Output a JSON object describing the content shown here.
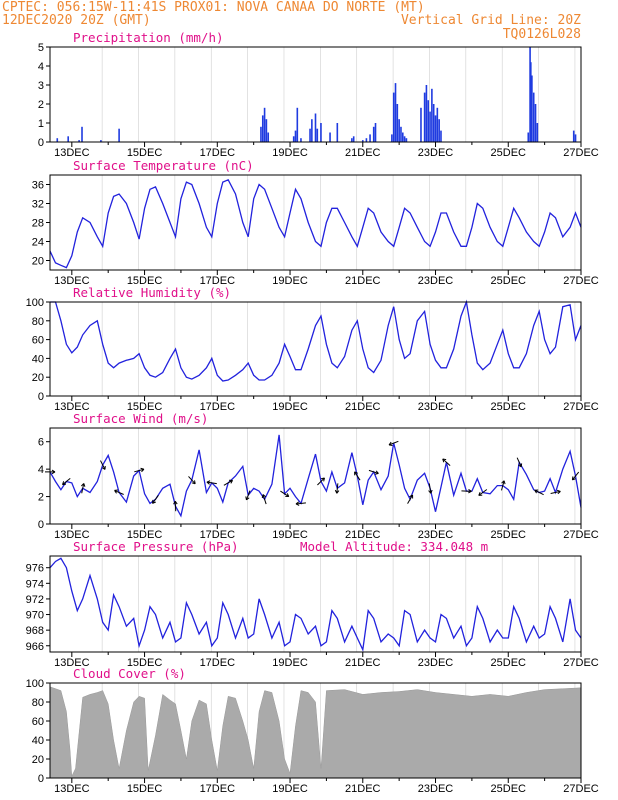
{
  "header": {
    "line1": "CPTEC:  056:15W-11:41S  PROX01: NOVA CANAA DO NORTE (MT)",
    "line2_left": "12DEC2020 20Z (GMT)",
    "line2_right": "Vertical Grid Line: 20Z",
    "line3_right": "TQ0126L028"
  },
  "colors": {
    "header": "#ee8833",
    "titles": "#e0108a",
    "line": "#2222dd",
    "bars": "#1f3be0",
    "cloud": "#aaaaaa"
  },
  "chart_data": [
    {
      "id": "precip",
      "type": "bar",
      "title": "Precipitation (mm/h)",
      "ylim": [
        0,
        5
      ],
      "yticks": [
        0,
        1,
        2,
        3,
        4,
        5
      ],
      "xlim_days": [
        12.4,
        27.0
      ],
      "xticks": [
        "13DEC",
        "15DEC",
        "17DEC",
        "19DEC",
        "21DEC",
        "23DEC",
        "25DEC",
        "27DEC"
      ],
      "x": [
        12.6,
        12.9,
        13.2,
        13.28,
        13.8,
        14.3,
        18.2,
        18.25,
        18.3,
        18.35,
        18.4,
        19.1,
        19.15,
        19.2,
        19.3,
        19.55,
        19.6,
        19.7,
        19.75,
        19.85,
        20.1,
        20.3,
        20.7,
        20.75,
        21.0,
        21.1,
        21.2,
        21.3,
        21.35,
        21.8,
        21.85,
        21.9,
        21.95,
        22.0,
        22.05,
        22.1,
        22.15,
        22.2,
        22.6,
        22.7,
        22.75,
        22.8,
        22.85,
        22.9,
        22.95,
        23.0,
        23.05,
        23.1,
        23.15,
        25.55,
        25.6,
        25.62,
        25.65,
        25.7,
        25.75,
        25.8,
        26.8,
        26.85
      ],
      "values": [
        0.2,
        0.3,
        0.1,
        0.8,
        0.1,
        0.7,
        0.8,
        1.4,
        1.8,
        1.2,
        0.5,
        0.3,
        0.6,
        1.8,
        0.2,
        0.7,
        1.2,
        1.5,
        0.7,
        1.0,
        0.5,
        1.0,
        0.2,
        0.3,
        0.1,
        0.2,
        0.4,
        0.8,
        1.0,
        0.4,
        2.6,
        3.1,
        2.0,
        1.2,
        0.8,
        0.5,
        0.3,
        0.2,
        1.8,
        2.6,
        3.0,
        2.2,
        1.6,
        2.8,
        2.0,
        1.4,
        1.8,
        1.2,
        0.6,
        0.5,
        5.0,
        4.2,
        3.5,
        2.6,
        2.0,
        1.0,
        0.6,
        0.4
      ]
    },
    {
      "id": "temp",
      "type": "line",
      "title": "Surface Temperature (nC)",
      "ylim": [
        18,
        38
      ],
      "yticks": [
        20,
        24,
        28,
        32,
        36
      ],
      "xlim_days": [
        12.4,
        27.0
      ],
      "xticks": [
        "13DEC",
        "15DEC",
        "17DEC",
        "19DEC",
        "21DEC",
        "23DEC",
        "25DEC",
        "27DEC"
      ],
      "x": [
        12.4,
        12.55,
        12.7,
        12.85,
        13.0,
        13.15,
        13.3,
        13.5,
        13.7,
        13.85,
        14.0,
        14.15,
        14.3,
        14.5,
        14.7,
        14.85,
        15.0,
        15.15,
        15.3,
        15.5,
        15.7,
        15.85,
        16.0,
        16.15,
        16.3,
        16.5,
        16.7,
        16.85,
        17.0,
        17.15,
        17.3,
        17.5,
        17.7,
        17.85,
        18.0,
        18.15,
        18.3,
        18.5,
        18.7,
        18.85,
        19.0,
        19.15,
        19.3,
        19.5,
        19.7,
        19.85,
        20.0,
        20.15,
        20.3,
        20.5,
        20.7,
        20.85,
        21.0,
        21.15,
        21.3,
        21.5,
        21.7,
        21.85,
        22.0,
        22.15,
        22.3,
        22.5,
        22.7,
        22.85,
        23.0,
        23.15,
        23.3,
        23.5,
        23.7,
        23.85,
        24.0,
        24.15,
        24.3,
        24.5,
        24.7,
        24.85,
        25.0,
        25.15,
        25.3,
        25.5,
        25.7,
        25.85,
        26.0,
        26.15,
        26.3,
        26.5,
        26.7,
        26.85,
        27.0
      ],
      "values": [
        22,
        19.5,
        19,
        18.5,
        21,
        26,
        29,
        28,
        25,
        23,
        30,
        33.5,
        34,
        32,
        28,
        24.5,
        31,
        35,
        35.5,
        32,
        28,
        25,
        33,
        36.5,
        36,
        32,
        27,
        25,
        32,
        36.5,
        37,
        34,
        28,
        25,
        33,
        36,
        35,
        31,
        27,
        25,
        30,
        35,
        33,
        28,
        24,
        23,
        28,
        31,
        31,
        28,
        25,
        23,
        27,
        31,
        30,
        26,
        24,
        23,
        27,
        31,
        30,
        27,
        24,
        23,
        26,
        30,
        30,
        26,
        23,
        23,
        27,
        32,
        31,
        27,
        24,
        23,
        27,
        31,
        29,
        26,
        24,
        23,
        26,
        30,
        29,
        25,
        27,
        30,
        27
      ]
    },
    {
      "id": "rh",
      "type": "line",
      "title": "Relative Humidity (%)",
      "ylim": [
        0,
        100
      ],
      "yticks": [
        0,
        20,
        40,
        60,
        80,
        100
      ],
      "xlim_days": [
        12.4,
        27.0
      ],
      "xticks": [
        "13DEC",
        "15DEC",
        "17DEC",
        "19DEC",
        "21DEC",
        "23DEC",
        "25DEC",
        "27DEC"
      ],
      "x": [
        12.4,
        12.55,
        12.7,
        12.85,
        13.0,
        13.15,
        13.3,
        13.5,
        13.7,
        13.85,
        14.0,
        14.15,
        14.3,
        14.5,
        14.7,
        14.85,
        15.0,
        15.15,
        15.3,
        15.5,
        15.7,
        15.85,
        16.0,
        16.15,
        16.3,
        16.5,
        16.7,
        16.85,
        17.0,
        17.15,
        17.3,
        17.5,
        17.7,
        17.85,
        18.0,
        18.15,
        18.3,
        18.5,
        18.7,
        18.85,
        19.0,
        19.15,
        19.3,
        19.5,
        19.7,
        19.85,
        20.0,
        20.15,
        20.3,
        20.5,
        20.7,
        20.85,
        21.0,
        21.15,
        21.3,
        21.5,
        21.7,
        21.85,
        22.0,
        22.15,
        22.3,
        22.5,
        22.7,
        22.85,
        23.0,
        23.15,
        23.3,
        23.5,
        23.7,
        23.85,
        24.0,
        24.15,
        24.3,
        24.5,
        24.7,
        24.85,
        25.0,
        25.15,
        25.3,
        25.5,
        25.7,
        25.85,
        26.0,
        26.15,
        26.3,
        26.5,
        26.7,
        26.85,
        27.0
      ],
      "values": [
        100,
        100,
        80,
        55,
        46,
        52,
        65,
        75,
        80,
        55,
        35,
        30,
        35,
        38,
        40,
        45,
        30,
        22,
        20,
        25,
        40,
        50,
        30,
        20,
        18,
        22,
        30,
        40,
        22,
        16,
        17,
        22,
        28,
        35,
        22,
        17,
        17,
        22,
        35,
        55,
        42,
        28,
        28,
        50,
        75,
        85,
        55,
        35,
        30,
        42,
        70,
        80,
        50,
        30,
        25,
        38,
        75,
        95,
        60,
        40,
        45,
        80,
        90,
        55,
        38,
        30,
        30,
        50,
        85,
        100,
        65,
        35,
        28,
        35,
        55,
        70,
        45,
        30,
        30,
        45,
        75,
        90,
        60,
        45,
        52,
        95,
        97,
        60,
        75
      ]
    },
    {
      "id": "wind",
      "type": "line",
      "title": "Surface Wind (m/s)",
      "ylim": [
        0,
        7
      ],
      "yticks": [
        0,
        2,
        4,
        6
      ],
      "xlim_days": [
        12.4,
        27.0
      ],
      "xticks": [
        "13DEC",
        "15DEC",
        "17DEC",
        "19DEC",
        "21DEC",
        "23DEC",
        "25DEC",
        "27DEC"
      ],
      "x": [
        12.4,
        12.55,
        12.7,
        12.85,
        13.0,
        13.15,
        13.3,
        13.5,
        13.7,
        13.85,
        14.0,
        14.15,
        14.3,
        14.5,
        14.7,
        14.85,
        15.0,
        15.15,
        15.3,
        15.5,
        15.7,
        15.85,
        16.0,
        16.15,
        16.3,
        16.5,
        16.7,
        16.85,
        17.0,
        17.15,
        17.3,
        17.5,
        17.7,
        17.85,
        18.0,
        18.15,
        18.3,
        18.5,
        18.7,
        18.85,
        19.0,
        19.15,
        19.3,
        19.5,
        19.7,
        19.85,
        20.0,
        20.15,
        20.3,
        20.5,
        20.7,
        20.85,
        21.0,
        21.15,
        21.3,
        21.5,
        21.7,
        21.85,
        22.0,
        22.15,
        22.3,
        22.5,
        22.7,
        22.85,
        23.0,
        23.15,
        23.3,
        23.5,
        23.7,
        23.85,
        24.0,
        24.15,
        24.3,
        24.5,
        24.7,
        24.85,
        25.0,
        25.15,
        25.3,
        25.5,
        25.7,
        25.85,
        26.0,
        26.15,
        26.3,
        26.5,
        26.7,
        26.85,
        27.0
      ],
      "values": [
        3.8,
        3.1,
        2.5,
        3.1,
        3.0,
        2.0,
        2.6,
        2.3,
        3.1,
        4.3,
        5.0,
        3.8,
        2.3,
        1.6,
        3.5,
        3.9,
        2.2,
        1.5,
        1.8,
        2.6,
        2.9,
        1.3,
        0.6,
        2.4,
        3.2,
        5.4,
        2.3,
        3.0,
        2.6,
        1.6,
        3.0,
        3.5,
        4.2,
        2.1,
        2.6,
        2.4,
        1.8,
        2.9,
        6.5,
        2.2,
        2.6,
        2.0,
        1.5,
        3.3,
        5.1,
        3.1,
        2.4,
        3.8,
        2.6,
        3.0,
        5.2,
        3.5,
        1.4,
        3.2,
        3.8,
        2.5,
        3.5,
        5.9,
        4.3,
        2.6,
        1.8,
        3.2,
        3.7,
        2.6,
        0.9,
        2.7,
        4.5,
        2.1,
        3.7,
        2.4,
        2.4,
        3.3,
        2.3,
        2.2,
        2.8,
        2.8,
        2.5,
        1.8,
        4.5,
        3.6,
        2.5,
        2.3,
        2.4,
        3.3,
        2.3,
        4.0,
        5.3,
        3.5,
        1.2
      ]
    },
    {
      "id": "pressure",
      "type": "line",
      "title": "Surface Pressure (hPa)",
      "annotation": "Model Altitude: 334.048 m",
      "ylim": [
        965.2,
        977.5
      ],
      "yticks": [
        966,
        968,
        970,
        972,
        974,
        976
      ],
      "xlim_days": [
        12.4,
        27.0
      ],
      "xticks": [
        "13DEC",
        "15DEC",
        "17DEC",
        "19DEC",
        "21DEC",
        "23DEC",
        "25DEC",
        "27DEC"
      ],
      "x": [
        12.4,
        12.55,
        12.7,
        12.85,
        13.0,
        13.15,
        13.3,
        13.5,
        13.7,
        13.85,
        14.0,
        14.15,
        14.3,
        14.5,
        14.7,
        14.85,
        15.0,
        15.15,
        15.3,
        15.5,
        15.7,
        15.85,
        16.0,
        16.15,
        16.3,
        16.5,
        16.7,
        16.85,
        17.0,
        17.15,
        17.3,
        17.5,
        17.7,
        17.85,
        18.0,
        18.15,
        18.3,
        18.5,
        18.7,
        18.85,
        19.0,
        19.15,
        19.3,
        19.5,
        19.7,
        19.85,
        20.0,
        20.15,
        20.3,
        20.5,
        20.7,
        20.85,
        21.0,
        21.15,
        21.3,
        21.5,
        21.7,
        21.85,
        22.0,
        22.15,
        22.3,
        22.5,
        22.7,
        22.85,
        23.0,
        23.15,
        23.3,
        23.5,
        23.7,
        23.85,
        24.0,
        24.15,
        24.3,
        24.5,
        24.7,
        24.85,
        25.0,
        25.15,
        25.3,
        25.5,
        25.7,
        25.85,
        26.0,
        26.15,
        26.3,
        26.5,
        26.7,
        26.85,
        27.0
      ],
      "values": [
        976,
        976.8,
        977.2,
        976,
        973,
        970.5,
        972,
        975,
        972,
        969,
        968,
        972.5,
        971,
        968.5,
        969.5,
        966,
        968,
        971,
        970,
        967,
        969,
        966.5,
        967,
        971.5,
        970,
        967.5,
        969,
        966,
        967,
        971.5,
        970,
        967,
        969.5,
        967,
        967.5,
        972,
        970,
        967,
        969,
        966,
        966.5,
        970,
        969.5,
        967.5,
        968.5,
        966,
        966.5,
        970.5,
        969.5,
        966.5,
        968.5,
        967,
        965.5,
        970.5,
        969.5,
        966.5,
        967.5,
        967,
        966,
        970.5,
        970,
        966.5,
        968,
        967,
        966.5,
        970,
        969.5,
        967,
        968.5,
        966,
        967,
        971,
        969.5,
        966.5,
        968,
        967,
        967,
        971,
        969.5,
        966.5,
        968.5,
        967,
        967.5,
        971,
        969.5,
        966.5,
        972,
        968,
        967
      ]
    },
    {
      "id": "cloud",
      "type": "area",
      "title": "Cloud Cover (%)",
      "ylim": [
        0,
        100
      ],
      "yticks": [
        0,
        20,
        40,
        60,
        80,
        100
      ],
      "xlim_days": [
        12.4,
        27.0
      ],
      "xticks": [
        "13DEC",
        "15DEC",
        "17DEC",
        "19DEC",
        "21DEC",
        "23DEC",
        "25DEC",
        "27DEC"
      ],
      "x": [
        12.4,
        12.55,
        12.7,
        12.85,
        12.95,
        13.0,
        13.1,
        13.3,
        13.5,
        13.7,
        13.85,
        14.0,
        14.15,
        14.3,
        14.5,
        14.7,
        14.85,
        15.0,
        15.1,
        15.3,
        15.5,
        15.7,
        15.85,
        16.0,
        16.15,
        16.3,
        16.5,
        16.7,
        16.85,
        17.0,
        17.15,
        17.3,
        17.5,
        17.7,
        17.85,
        18.0,
        18.15,
        18.3,
        18.5,
        18.7,
        18.85,
        19.0,
        19.15,
        19.3,
        19.5,
        19.7,
        19.85,
        20.0,
        20.5,
        21.0,
        21.5,
        22.0,
        22.5,
        23.0,
        23.5,
        24.0,
        24.5,
        25.0,
        25.5,
        26.0,
        26.5,
        27.0
      ],
      "values": [
        96,
        94,
        92,
        70,
        30,
        2,
        10,
        85,
        88,
        90,
        92,
        78,
        40,
        10,
        50,
        80,
        86,
        84,
        8,
        45,
        88,
        82,
        78,
        50,
        20,
        60,
        82,
        78,
        40,
        8,
        55,
        86,
        84,
        60,
        40,
        10,
        70,
        92,
        90,
        60,
        20,
        5,
        55,
        92,
        90,
        80,
        10,
        92,
        93,
        88,
        90,
        91,
        93,
        90,
        88,
        86,
        88,
        86,
        90,
        93,
        94,
        95
      ]
    }
  ]
}
